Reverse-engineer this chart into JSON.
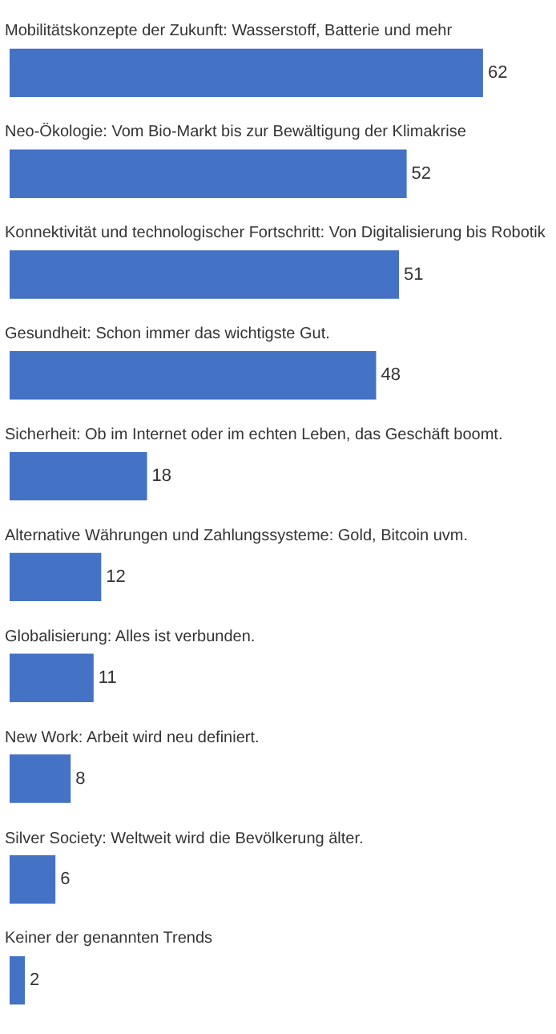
{
  "chart_data": {
    "type": "bar",
    "orientation": "horizontal",
    "data_labels": true,
    "legend": false,
    "categories": [
      "Mobilitätskonzepte der Zukunft: Wasserstoff, Batterie und mehr",
      "Neo-Ökologie: Vom Bio-Markt bis zur Bewältigung der Klimakrise",
      "Konnektivität und technologischer Fortschritt: Von Digitalisierung bis Robotik",
      "Gesundheit: Schon immer das wichtigste Gut.",
      "Sicherheit: Ob im Internet oder im echten Leben, das Geschäft boomt.",
      "Alternative Währungen und Zahlungssysteme: Gold, Bitcoin uvm.",
      "Globalisierung: Alles ist verbunden.",
      "New Work: Arbeit wird neu definiert.",
      "Silver Society: Weltweit wird die Bevölkerung älter.",
      "Keiner der genannten Trends"
    ],
    "values": [
      62,
      52,
      51,
      48,
      18,
      12,
      11,
      8,
      6,
      2
    ],
    "color": "#4472c4"
  }
}
